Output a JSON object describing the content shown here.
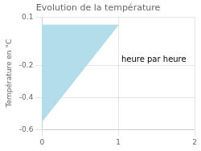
{
  "chart_data": {
    "type": "area",
    "title": "Evolution de la température",
    "ylabel": "Température en °C",
    "annotation": "heure par heure",
    "x": [
      0,
      0,
      1
    ],
    "values": [
      0.05,
      -0.55,
      0.05
    ],
    "color": "#b3dde8",
    "xlim": [
      0,
      2
    ],
    "ylim": [
      -0.6,
      0.1
    ],
    "xticks": [
      0,
      1,
      2
    ],
    "yticks": [
      -0.6,
      -0.4,
      -0.2,
      0.1
    ],
    "grid": true
  }
}
